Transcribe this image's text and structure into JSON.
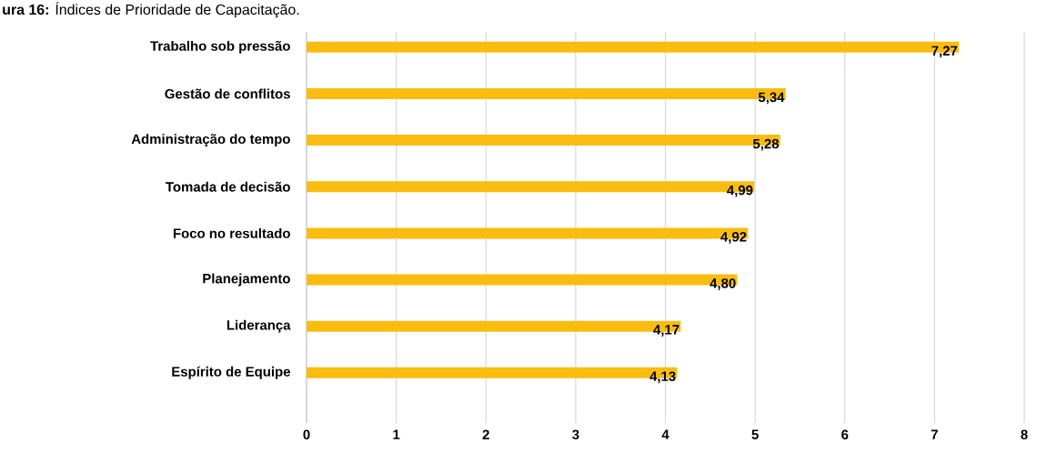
{
  "chart_data": {
    "type": "bar",
    "orientation": "horizontal",
    "title": "**ura 16:** Índices de Prioridade de Capacitação.",
    "categories": [
      "Trabalho sob pressão",
      "Gestão de conflitos",
      "Administração do tempo",
      "Tomada de decisão",
      "Foco no resultado",
      "Planejamento",
      "Liderança",
      "Espírito de Equipe"
    ],
    "values": [
      7.27,
      5.34,
      5.28,
      4.99,
      4.92,
      4.8,
      4.17,
      4.13
    ],
    "value_labels": [
      "7,27",
      "5,34",
      "5,28",
      "4,99",
      "4,92",
      "4,80",
      "4,17",
      "4,13"
    ],
    "color": "#fbbc12",
    "xlim": [
      0,
      8
    ],
    "xticks": [
      0,
      1,
      2,
      3,
      4,
      5,
      6,
      7,
      8
    ],
    "grid": "x"
  }
}
